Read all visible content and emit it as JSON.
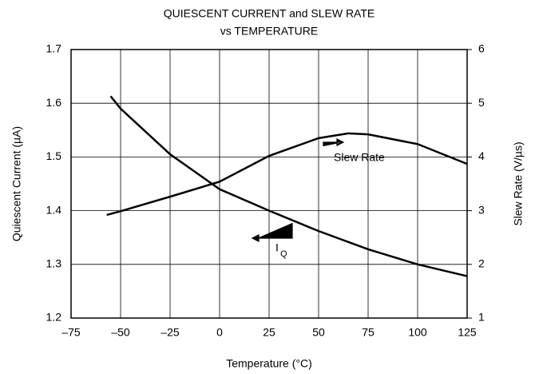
{
  "chart_data": {
    "type": "line",
    "title": [
      "QUIESCENT CURRENT and SLEW RATE",
      "vs TEMPERATURE"
    ],
    "x_label": "Temperature (°C)",
    "y_label": "Quiescent Current (µA)",
    "y2_label": "Slew Rate (V/µs)",
    "xlim": [
      -75,
      125
    ],
    "xticks": [
      {
        "value": -75,
        "label": "–75"
      },
      {
        "value": -50,
        "label": "–50"
      },
      {
        "value": -25,
        "label": "–25"
      },
      0,
      25,
      50,
      75,
      100,
      125
    ],
    "ylim": [
      1.2,
      1.7
    ],
    "yticks": [
      1.2,
      1.3,
      1.4,
      1.5,
      1.6,
      1.7
    ],
    "y2lim": [
      1,
      6
    ],
    "y2ticks": [
      1,
      2,
      3,
      4,
      5,
      6
    ],
    "grid": true,
    "series": [
      {
        "name": "IQ",
        "color": "#000000",
        "x": [
          -55,
          -50,
          -25,
          0,
          25,
          50,
          75,
          100,
          125
        ],
        "values": [
          1.613,
          1.59,
          1.505,
          1.44,
          1.4,
          1.362,
          1.328,
          1.3,
          1.278
        ]
      },
      {
        "name": "Slew Rate",
        "color": "#000000",
        "axis": "y2",
        "x": [
          -57,
          -50,
          -25,
          0,
          25,
          50,
          65,
          75,
          100,
          125
        ],
        "values": [
          2.92,
          2.99,
          3.26,
          3.54,
          4.02,
          4.35,
          4.44,
          4.42,
          4.24,
          3.87
        ]
      }
    ],
    "annotations": {
      "slew": "Slew Rate",
      "iq_main": "I",
      "iq_sub": "Q"
    }
  }
}
